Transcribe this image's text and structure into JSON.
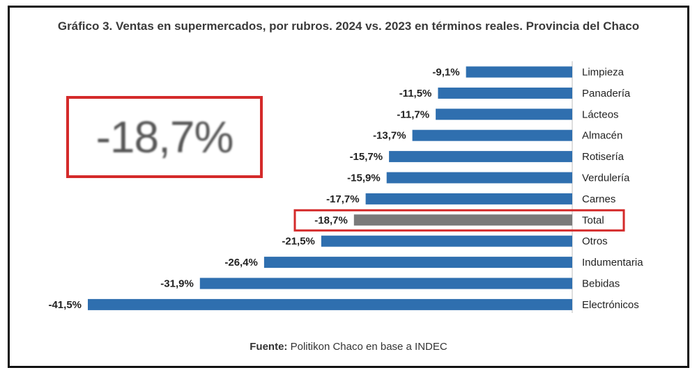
{
  "chart_data": {
    "type": "bar",
    "orientation": "horizontal",
    "title": "Gráfico 3. Ventas en supermercados, por rubros. 2024 vs. 2023 en términos reales. Provincia del Chaco",
    "categories": [
      "Limpieza",
      "Panadería",
      "Lácteos",
      "Almacén",
      "Rotisería",
      "Verdulería",
      "Carnes",
      "Total",
      "Otros",
      "Indumentaria",
      "Bebidas",
      "Electrónicos"
    ],
    "values": [
      -9.1,
      -11.5,
      -11.7,
      -13.7,
      -15.7,
      -15.9,
      -17.7,
      -18.7,
      -21.5,
      -26.4,
      -31.9,
      -41.5
    ],
    "value_labels": [
      "-9,1%",
      "-11,5%",
      "-11,7%",
      "-13,7%",
      "-15,7%",
      "-15,9%",
      "-17,7%",
      "-18,7%",
      "-21,5%",
      "-26,4%",
      "-31,9%",
      "-41,5%"
    ],
    "highlight_category": "Total",
    "colors": {
      "bar": "#2f6faf",
      "highlight_bar": "#7a7a7a",
      "callout_border": "#d42a2a"
    },
    "xlim": [
      -41.5,
      0
    ],
    "grid": false,
    "legend": "none"
  },
  "callout": {
    "value": "-18,7%"
  },
  "source": {
    "prefix": "Fuente:",
    "text": " Politikon Chaco en base a INDEC"
  }
}
